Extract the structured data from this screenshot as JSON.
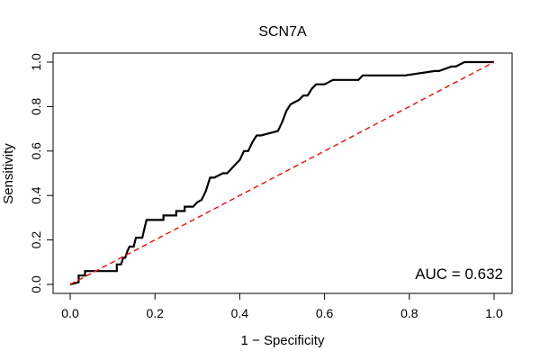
{
  "chart_data": {
    "type": "line",
    "title": "SCN7A",
    "xlabel": "1 − Specificity",
    "ylabel": "Sensitivity",
    "xlim": [
      0,
      1
    ],
    "ylim": [
      0,
      1
    ],
    "x_ticks": [
      "0.0",
      "0.2",
      "0.4",
      "0.6",
      "0.8",
      "1.0"
    ],
    "y_ticks": [
      "0.0",
      "0.2",
      "0.4",
      "0.6",
      "0.8",
      "1.0"
    ],
    "grid": false,
    "annotation": "AUC = 0.632",
    "series": [
      {
        "line_style": "solid",
        "color": "#000000",
        "x": [
          0,
          0.02,
          0.02,
          0.035,
          0.035,
          0.11,
          0.11,
          0.12,
          0.125,
          0.13,
          0.135,
          0.14,
          0.15,
          0.155,
          0.16,
          0.17,
          0.175,
          0.18,
          0.22,
          0.22,
          0.25,
          0.25,
          0.27,
          0.27,
          0.29,
          0.3,
          0.31,
          0.32,
          0.33,
          0.34,
          0.36,
          0.37,
          0.38,
          0.39,
          0.4,
          0.41,
          0.42,
          0.43,
          0.44,
          0.45,
          0.49,
          0.5,
          0.51,
          0.52,
          0.52,
          0.54,
          0.55,
          0.56,
          0.57,
          0.58,
          0.6,
          0.62,
          0.68,
          0.69,
          0.78,
          0.79,
          0.86,
          0.87,
          0.9,
          0.91,
          0.93,
          1.0
        ],
        "y": [
          0,
          0.01,
          0.04,
          0.04,
          0.06,
          0.06,
          0.09,
          0.09,
          0.12,
          0.12,
          0.15,
          0.17,
          0.17,
          0.21,
          0.21,
          0.21,
          0.25,
          0.29,
          0.29,
          0.31,
          0.31,
          0.33,
          0.33,
          0.35,
          0.35,
          0.37,
          0.38,
          0.42,
          0.48,
          0.48,
          0.5,
          0.5,
          0.52,
          0.54,
          0.56,
          0.6,
          0.6,
          0.64,
          0.67,
          0.67,
          0.69,
          0.73,
          0.78,
          0.81,
          0.81,
          0.83,
          0.85,
          0.85,
          0.88,
          0.9,
          0.9,
          0.92,
          0.92,
          0.94,
          0.94,
          0.94,
          0.96,
          0.96,
          0.98,
          0.98,
          1.0,
          1.0
        ]
      },
      {
        "line_style": "dashed",
        "color": "#e41a1c",
        "x": [
          0,
          1
        ],
        "y": [
          0,
          1
        ]
      }
    ]
  }
}
